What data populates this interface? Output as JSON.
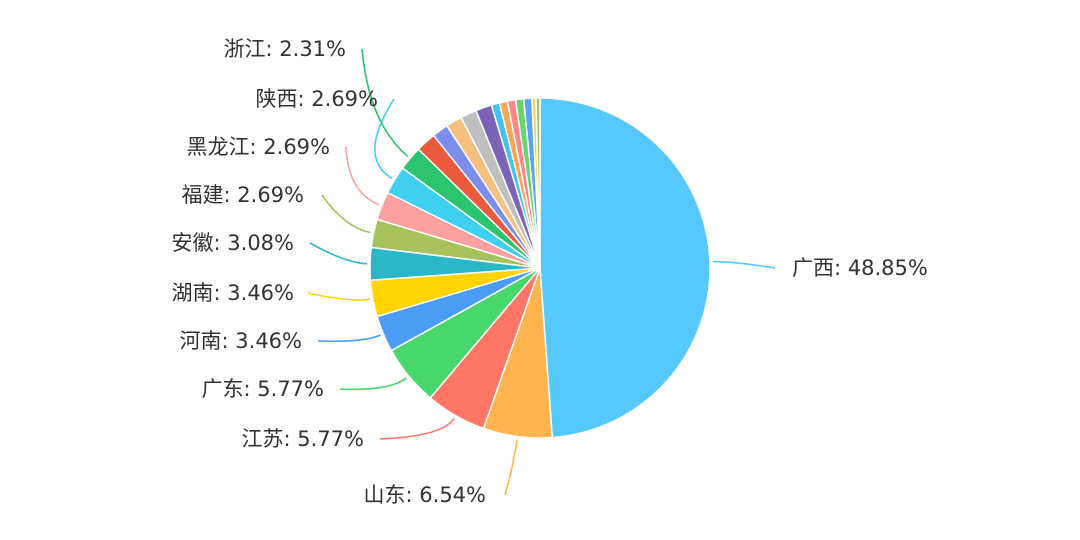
{
  "chart_data": {
    "type": "pie",
    "labeled_slices": [
      {
        "label": "广西: 48.85%",
        "value": 48.85,
        "color": "#56C8FC"
      },
      {
        "label": "山东: 6.54%",
        "value": 6.54,
        "color": "#FFB44F"
      },
      {
        "label": "江苏: 5.77%",
        "value": 5.77,
        "color": "#FF7566"
      },
      {
        "label": "广东: 5.77%",
        "value": 5.77,
        "color": "#47D76A"
      },
      {
        "label": "河南: 3.46%",
        "value": 3.46,
        "color": "#4A9CF5"
      },
      {
        "label": "湖南: 3.46%",
        "value": 3.46,
        "color": "#FFD400"
      },
      {
        "label": "安徽: 3.08%",
        "value": 3.08,
        "color": "#2AB8C9"
      },
      {
        "label": "福建: 2.69%",
        "value": 2.69,
        "color": "#A7C25C"
      },
      {
        "label": "黑龙江: 2.69%",
        "value": 2.69,
        "color": "#FBA0A0"
      },
      {
        "label": "陕西: 2.69%",
        "value": 2.69,
        "color": "#3FCFEF"
      },
      {
        "label": "浙江: 2.31%",
        "value": 2.31,
        "color": "#2CC46E"
      }
    ],
    "unlabeled_slices": [
      {
        "value": 1.92,
        "color": "#EB5A3C"
      },
      {
        "value": 1.54,
        "color": "#7C8DEB"
      },
      {
        "value": 1.54,
        "color": "#F4C080"
      },
      {
        "value": 1.54,
        "color": "#BFBFBF"
      },
      {
        "value": 1.54,
        "color": "#7B64B8"
      },
      {
        "value": 0.77,
        "color": "#45C1F0"
      },
      {
        "value": 0.77,
        "color": "#F9A65A"
      },
      {
        "value": 0.77,
        "color": "#FF8686"
      },
      {
        "value": 0.77,
        "color": "#68D46B"
      },
      {
        "value": 0.77,
        "color": "#5AA3F0"
      },
      {
        "value": 0.38,
        "color": "#F5D34A"
      },
      {
        "value": 0.38,
        "color": "#A5C26A"
      }
    ]
  }
}
